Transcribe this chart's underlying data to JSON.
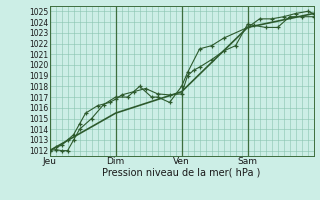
{
  "xlabel": "Pression niveau de la mer( hPa )",
  "ylim": [
    1011.5,
    1025.5
  ],
  "yticks": [
    1012,
    1013,
    1014,
    1015,
    1016,
    1017,
    1018,
    1019,
    1020,
    1021,
    1022,
    1023,
    1024,
    1025
  ],
  "background_color": "#cceee6",
  "grid_color": "#88c4b0",
  "line_color": "#2d5a2d",
  "day_labels": [
    "Jeu",
    "Dim",
    "Ven",
    "Sam"
  ],
  "day_positions": [
    0,
    88,
    176,
    264
  ],
  "total_hours": 352,
  "line1_x": [
    0,
    8,
    16,
    24,
    32,
    40,
    48,
    64,
    80,
    88,
    96,
    112,
    128,
    144,
    160,
    176,
    184,
    192,
    200,
    216,
    232,
    248,
    264,
    272,
    288,
    304,
    320,
    336,
    352
  ],
  "line1_y": [
    1012.0,
    1012.3,
    1012.5,
    1013.0,
    1013.5,
    1014.5,
    1015.5,
    1016.2,
    1016.5,
    1016.8,
    1017.2,
    1017.5,
    1017.8,
    1017.3,
    1017.2,
    1017.3,
    1019.0,
    1019.5,
    1019.8,
    1020.5,
    1021.3,
    1021.8,
    1023.8,
    1023.7,
    1023.5,
    1023.5,
    1024.5,
    1024.5,
    1024.5
  ],
  "line2_x": [
    0,
    8,
    16,
    24,
    32,
    40,
    56,
    72,
    88,
    104,
    120,
    136,
    144,
    160,
    176,
    184,
    200,
    216,
    232,
    264,
    280,
    296,
    312,
    328,
    344,
    352
  ],
  "line2_y": [
    1012.0,
    1012.1,
    1012.0,
    1012.0,
    1013.0,
    1014.0,
    1015.0,
    1016.3,
    1017.0,
    1017.0,
    1018.0,
    1017.0,
    1017.0,
    1016.5,
    1018.0,
    1019.3,
    1021.5,
    1021.8,
    1022.5,
    1023.5,
    1024.3,
    1024.3,
    1024.5,
    1024.8,
    1025.0,
    1024.8
  ],
  "line3_x": [
    0,
    88,
    176,
    264,
    352
  ],
  "line3_y": [
    1012.0,
    1015.5,
    1017.5,
    1023.5,
    1024.8
  ],
  "vgrid_minor_step": 8
}
